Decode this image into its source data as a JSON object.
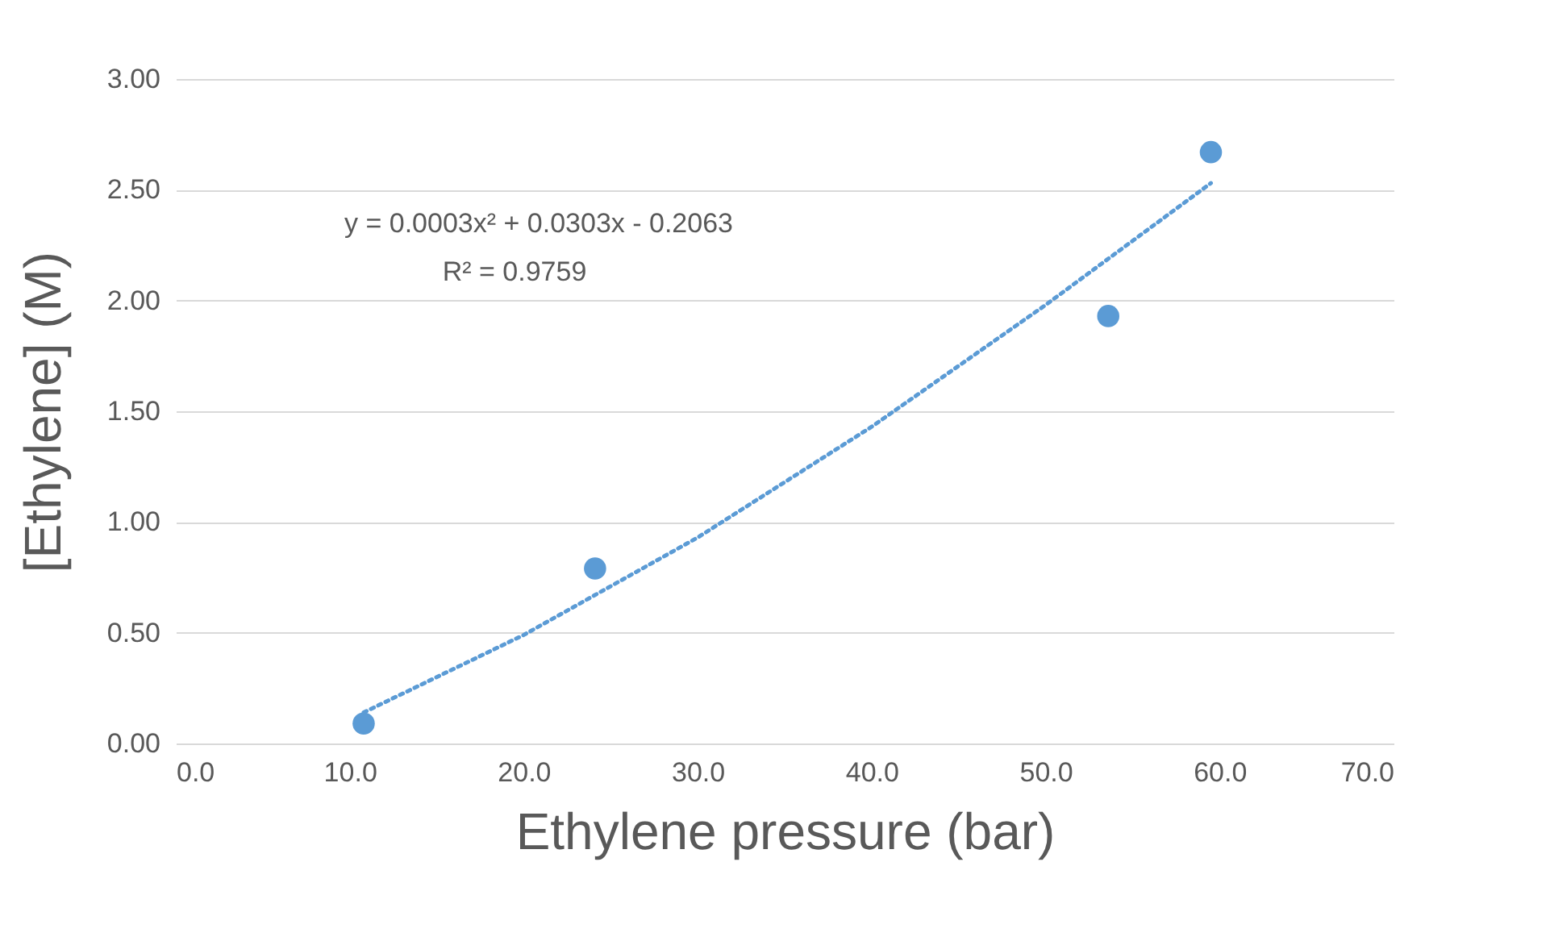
{
  "chart_data": {
    "type": "scatter",
    "xlabel": "Ethylene pressure (bar)",
    "ylabel": "[Ethylene] (M)",
    "annotations": [
      "y = 0.0003x² + 0.0303x - 0.2063",
      "R² = 0.9759"
    ],
    "xlim": [
      0,
      70
    ],
    "xticks": [
      {
        "value": 0,
        "label": "0.0"
      },
      {
        "value": 10,
        "label": "10.0"
      },
      {
        "value": 20,
        "label": "20.0"
      },
      {
        "value": 30,
        "label": "30.0"
      },
      {
        "value": 40,
        "label": "40.0"
      },
      {
        "value": 50,
        "label": "50.0"
      },
      {
        "value": 60,
        "label": "60.0"
      },
      {
        "value": 70,
        "label": "70.0"
      }
    ],
    "ylim": [
      0,
      3
    ],
    "yticks": [
      {
        "value": 0,
        "label": "0.00"
      },
      {
        "value": 0.5,
        "label": "0.50"
      },
      {
        "value": 1,
        "label": "1.00"
      },
      {
        "value": 1.5,
        "label": "1.50"
      },
      {
        "value": 2,
        "label": "2.00"
      },
      {
        "value": 2.5,
        "label": "2.50"
      },
      {
        "value": 3,
        "label": "3.00"
      }
    ],
    "grid": "y",
    "marker": "circle",
    "series": [
      {
        "color": "#5b9bd5",
        "x": [
          10.8,
          24.1,
          53.6,
          59.5
        ],
        "values": [
          0.09,
          0.79,
          1.93,
          2.67
        ]
      },
      {
        "type": "line",
        "color": "#5b9bd5",
        "line_style": "dotted",
        "marker": "none",
        "x": [
          10.8,
          20,
          30,
          40,
          50,
          59.5
        ],
        "values": [
          0.14,
          0.49,
          0.93,
          1.43,
          1.98,
          2.53
        ]
      }
    ]
  }
}
